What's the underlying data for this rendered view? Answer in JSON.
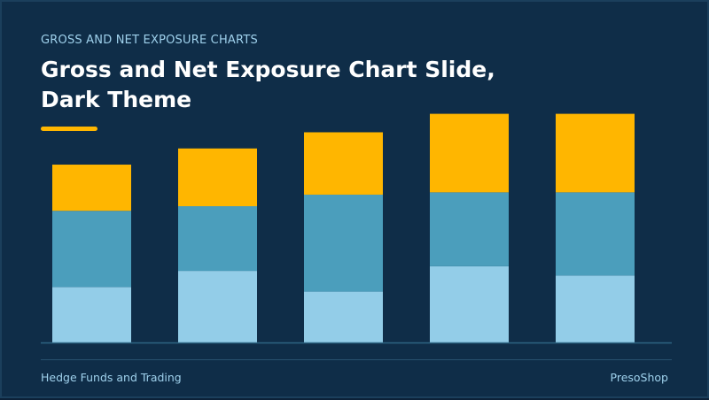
{
  "slide": {
    "kicker": "GROSS AND NET EXPOSURE CHARTS",
    "title_line1": "Gross and Net Exposure Chart Slide,",
    "title_line2": "Dark Theme",
    "footer_left": "Hedge Funds and Trading",
    "footer_right": "PresoShop"
  },
  "colors": {
    "background": "#0f2d48",
    "accent": "#ffb600",
    "series_bottom": "#93cde8",
    "series_middle": "#4b9ebc",
    "series_top": "#ffb600",
    "baseline": "#2e6583"
  },
  "chart_data": {
    "type": "bar",
    "stacked": true,
    "grid": false,
    "legend": "none",
    "categories": [
      "",
      "",
      "",
      "",
      ""
    ],
    "series": [
      {
        "values": [
          24,
          31,
          22,
          33,
          29
        ]
      },
      {
        "values": [
          33,
          28,
          42,
          32,
          36
        ]
      },
      {
        "values": [
          20,
          25,
          27,
          34,
          34
        ]
      }
    ],
    "ylim": [
      0,
      100
    ]
  }
}
